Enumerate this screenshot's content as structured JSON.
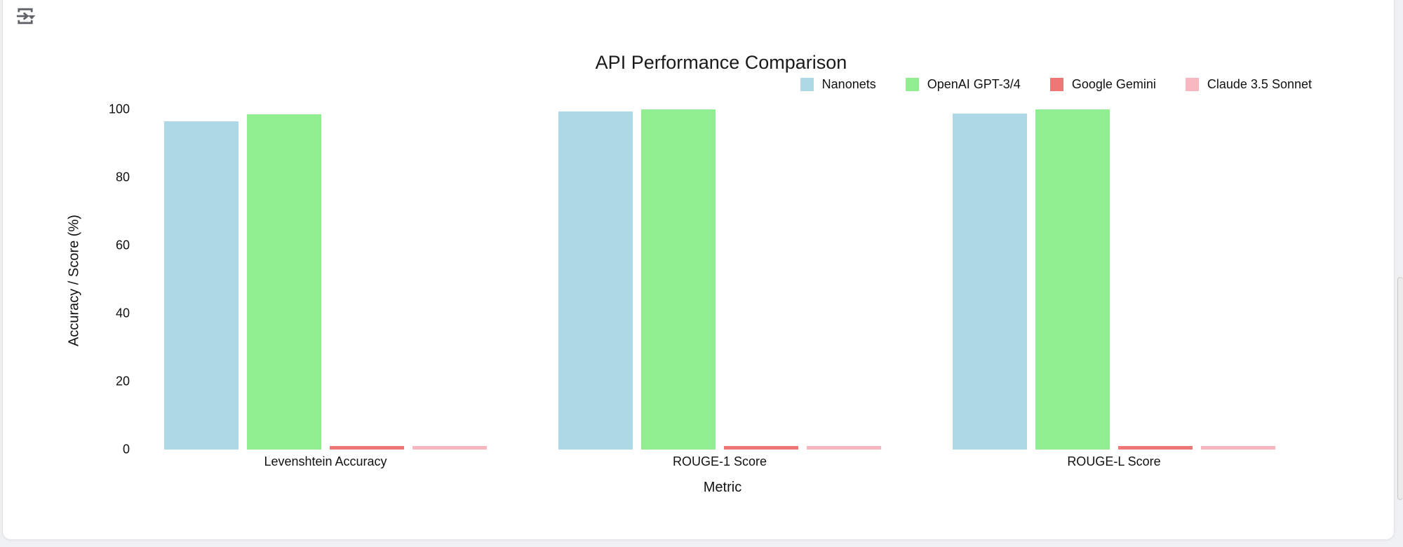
{
  "toolbar": {
    "icon": "insert-run-dropdown-icon",
    "icon_color": "#5f6368"
  },
  "scrollbar": {
    "present": true
  },
  "chart_data": {
    "type": "bar",
    "title": "API Performance Comparison",
    "xlabel": "Metric",
    "ylabel": "Accuracy / Score (%)",
    "ylim": [
      0,
      100
    ],
    "yticks": [
      0,
      20,
      40,
      60,
      80,
      100
    ],
    "categories": [
      "Levenshtein Accuracy",
      "ROUGE-1 Score",
      "ROUGE-L Score"
    ],
    "series": [
      {
        "name": "Nanonets",
        "color": "#ADD8E6",
        "values": [
          96.5,
          99.3,
          98.8
        ]
      },
      {
        "name": "OpenAI GPT-3/4",
        "color": "#90EE90",
        "values": [
          98.5,
          100,
          100
        ]
      },
      {
        "name": "Google Gemini",
        "color": "#EE7674",
        "values": [
          1,
          1,
          1
        ]
      },
      {
        "name": "Claude 3.5 Sonnet",
        "color": "#F8B6C1",
        "values": [
          1,
          1,
          1
        ]
      }
    ],
    "legend_position": "top-right",
    "grid": false
  }
}
